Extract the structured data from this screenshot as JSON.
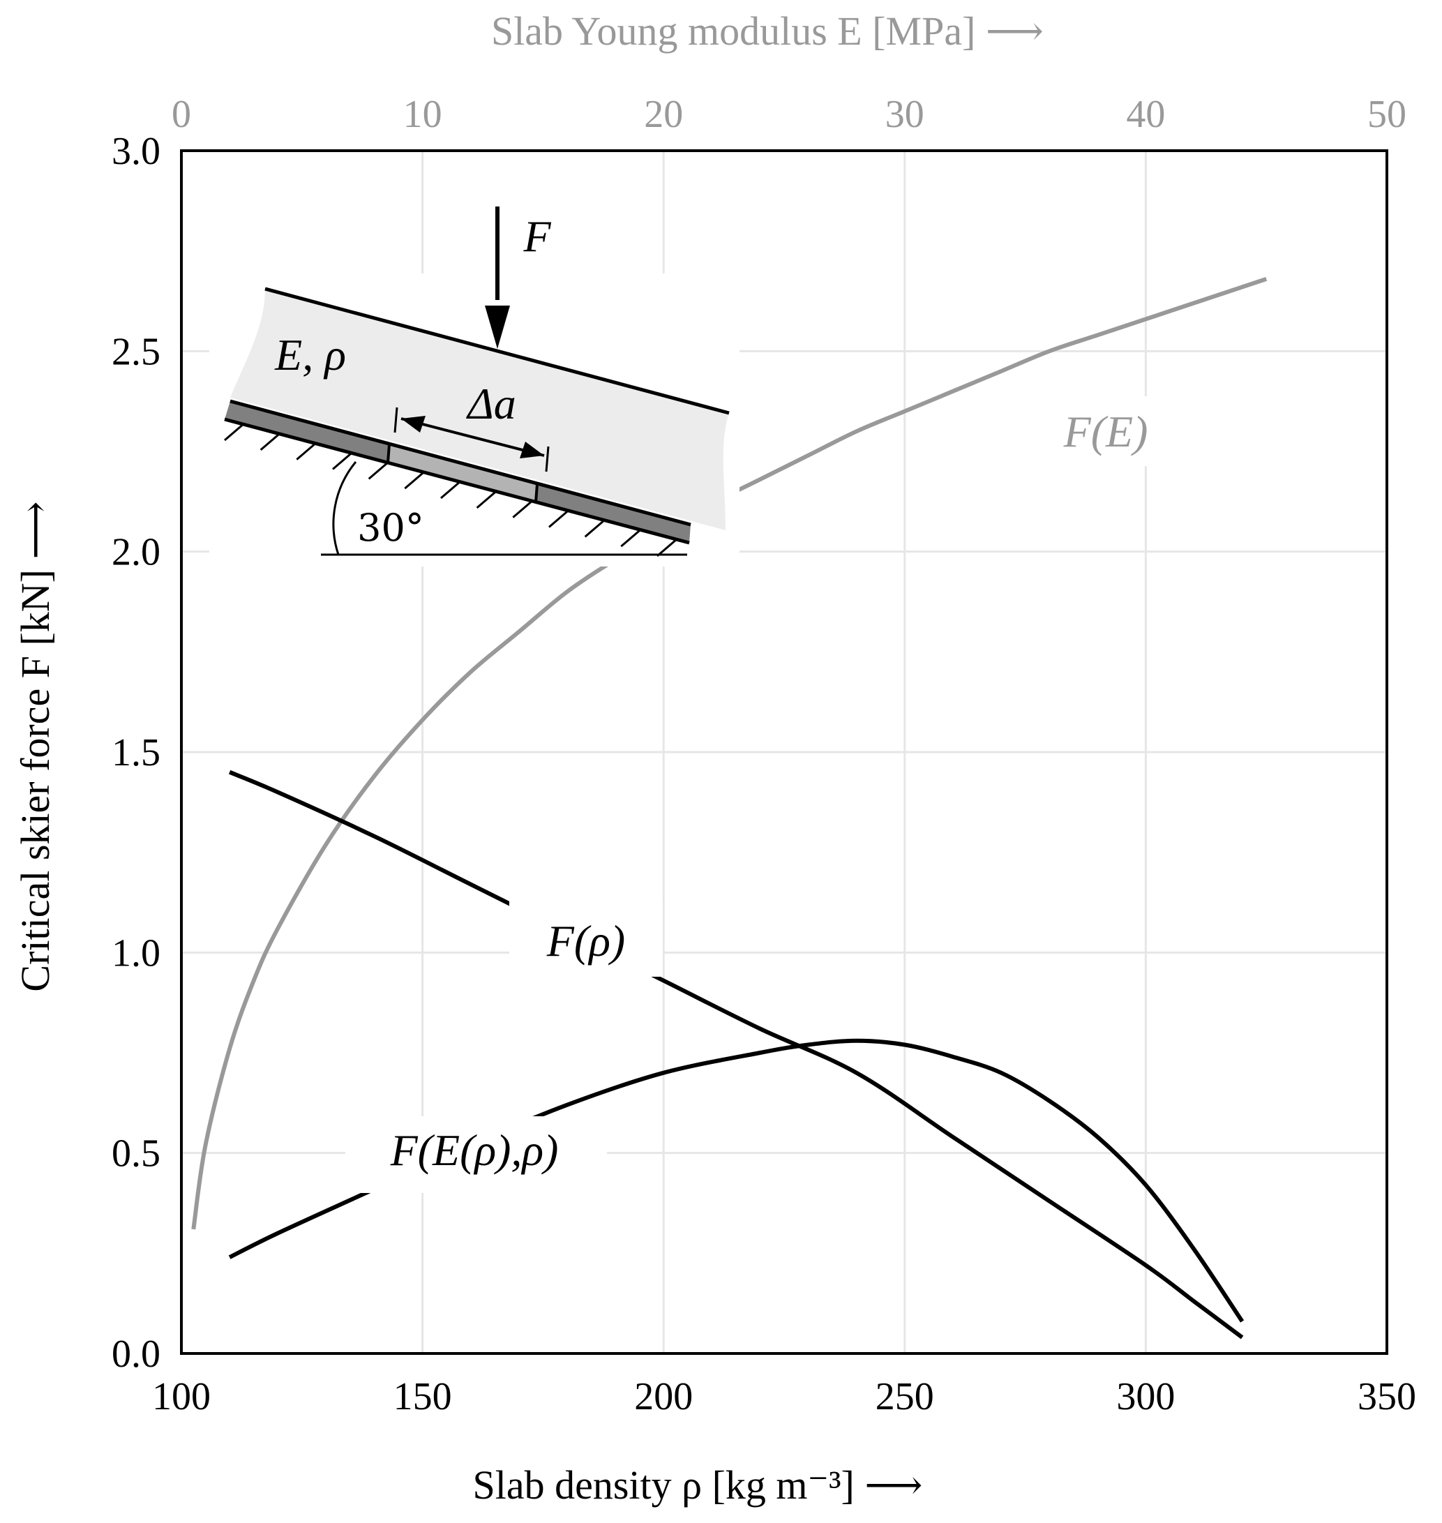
{
  "chart_data": {
    "type": "line",
    "xlabel": "Slab density ρ [kg m⁻³] ⟶",
    "ylabel": "Critical skier force F [kN] ⟶",
    "x2label": "Slab Young modulus E [MPa] ⟶",
    "xlim": [
      100,
      350
    ],
    "ylim": [
      0,
      3.0
    ],
    "x2lim": [
      0,
      50
    ],
    "x_ticks": [
      "100",
      "150",
      "200",
      "250",
      "300",
      "350"
    ],
    "y_ticks": [
      "0.0",
      "0.5",
      "1.0",
      "1.5",
      "2.0",
      "2.5",
      "3.0"
    ],
    "x2_ticks": [
      "0",
      "10",
      "20",
      "30",
      "40",
      "50"
    ],
    "grid": true,
    "colors": {
      "black_series": "#000000",
      "gray_series": "#999999",
      "grid": "#e6e6e6"
    },
    "series": [
      {
        "name": "F(E)",
        "axis": "top",
        "color": "#999999",
        "x": [
          0.5,
          1,
          2,
          3,
          4,
          6,
          8,
          10,
          12,
          14,
          16,
          18,
          20,
          22,
          24,
          26,
          28,
          30,
          32,
          34,
          36,
          38,
          40,
          42,
          44,
          45
        ],
        "y": [
          0.31,
          0.52,
          0.76,
          0.93,
          1.06,
          1.27,
          1.44,
          1.58,
          1.7,
          1.8,
          1.9,
          1.98,
          2.05,
          2.12,
          2.18,
          2.24,
          2.3,
          2.35,
          2.4,
          2.45,
          2.5,
          2.54,
          2.58,
          2.62,
          2.66,
          2.68
        ]
      },
      {
        "name": "F(ρ)",
        "axis": "bottom",
        "color": "#000000",
        "x": [
          110,
          120,
          140,
          160,
          180,
          200,
          220,
          240,
          260,
          280,
          300,
          310,
          320
        ],
        "y": [
          1.45,
          1.4,
          1.29,
          1.17,
          1.05,
          0.93,
          0.81,
          0.7,
          0.54,
          0.38,
          0.22,
          0.13,
          0.04
        ]
      },
      {
        "name": "F(E(ρ),ρ)",
        "axis": "bottom",
        "color": "#000000",
        "x": [
          110,
          120,
          140,
          160,
          180,
          200,
          220,
          230,
          240,
          250,
          260,
          270,
          280,
          290,
          300,
          310,
          320
        ],
        "y": [
          0.24,
          0.3,
          0.41,
          0.52,
          0.62,
          0.7,
          0.75,
          0.77,
          0.78,
          0.77,
          0.74,
          0.7,
          0.63,
          0.54,
          0.42,
          0.26,
          0.08
        ]
      }
    ],
    "inset": {
      "force_label": "F",
      "material_label": "E, ρ",
      "crack_label": "Δa",
      "angle_label": "30°"
    }
  }
}
